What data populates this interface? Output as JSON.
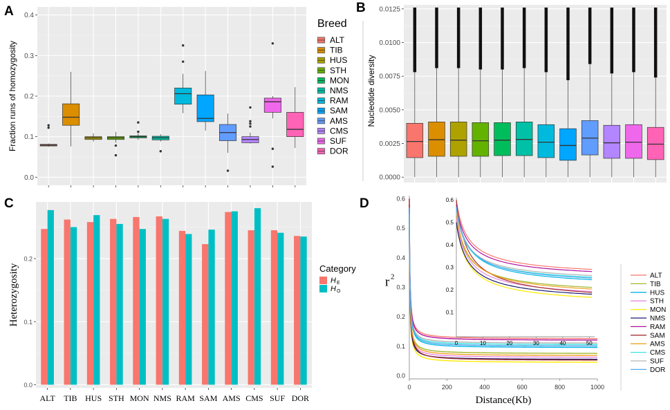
{
  "panels": {
    "A": "A",
    "B": "B",
    "C": "C",
    "D": "D"
  },
  "colors": {
    "ALT": "#f8766d",
    "TIB": "#db8e00",
    "HUS": "#aea200",
    "STH": "#64b200",
    "MON": "#00bd5c",
    "NMS": "#00c1a7",
    "RAM": "#00bade",
    "SAM": "#00a6ff",
    "AMS": "#619cff",
    "CMS": "#b385ff",
    "SUF": "#ef67eb",
    "DOR": "#ff63b6",
    "HE": "#f8766d",
    "HO": "#00bfc4"
  },
  "chart_data": [
    {
      "panel": "A",
      "type": "box",
      "ylabel": "Fraction runs of homozygosity",
      "ylim": [
        -0.02,
        0.42
      ],
      "yticks": [
        "0.0",
        "0.1",
        "0.2",
        "0.3",
        "0.4"
      ],
      "ytick_values": [
        0,
        0.1,
        0.2,
        0.3,
        0.4
      ],
      "legend_title": "Breed",
      "categories": [
        "ALT",
        "TIB",
        "HUS",
        "STH",
        "MON",
        "NMS",
        "RAM",
        "SAM",
        "AMS",
        "CMS",
        "SUF",
        "DOR"
      ],
      "boxes": [
        {
          "min": 0.075,
          "q1": 0.077,
          "median": 0.079,
          "q3": 0.081,
          "max": 0.083,
          "outliers": [
            0.122,
            0.128
          ]
        },
        {
          "min": 0.076,
          "q1": 0.128,
          "median": 0.148,
          "q3": 0.181,
          "max": 0.26,
          "outliers": []
        },
        {
          "min": 0.088,
          "q1": 0.093,
          "median": 0.097,
          "q3": 0.1,
          "max": 0.108,
          "outliers": []
        },
        {
          "min": 0.085,
          "q1": 0.093,
          "median": 0.097,
          "q3": 0.1,
          "max": 0.112,
          "outliers": [
            0.078,
            0.054
          ]
        },
        {
          "min": 0.092,
          "q1": 0.097,
          "median": 0.1,
          "q3": 0.102,
          "max": 0.108,
          "outliers": [
            0.112,
            0.135
          ]
        },
        {
          "min": 0.088,
          "q1": 0.092,
          "median": 0.097,
          "q3": 0.101,
          "max": 0.106,
          "outliers": [
            0.064
          ]
        },
        {
          "min": 0.158,
          "q1": 0.18,
          "median": 0.206,
          "q3": 0.22,
          "max": 0.255,
          "outliers": [
            0.285,
            0.325
          ]
        },
        {
          "min": 0.115,
          "q1": 0.137,
          "median": 0.145,
          "q3": 0.203,
          "max": 0.262,
          "outliers": []
        },
        {
          "min": 0.06,
          "q1": 0.09,
          "median": 0.11,
          "q3": 0.13,
          "max": 0.157,
          "outliers": [
            0.016
          ]
        },
        {
          "min": 0.083,
          "q1": 0.085,
          "median": 0.093,
          "q3": 0.1,
          "max": 0.11,
          "outliers": [
            0.125,
            0.132,
            0.138,
            0.172
          ]
        },
        {
          "min": 0.145,
          "q1": 0.16,
          "median": 0.186,
          "q3": 0.195,
          "max": 0.2,
          "outliers": [
            0.33,
            0.07,
            0.026
          ]
        },
        {
          "min": 0.072,
          "q1": 0.1,
          "median": 0.118,
          "q3": 0.16,
          "max": 0.222,
          "outliers": []
        }
      ]
    },
    {
      "panel": "B",
      "type": "box",
      "ylabel": "Nucleotide diversity",
      "ylim": [
        -0.0004,
        0.0128
      ],
      "yticks": [
        "0.0000",
        "0.0025",
        "0.0050",
        "0.0075",
        "0.0100",
        "0.0125"
      ],
      "ytick_values": [
        0,
        0.0025,
        0.005,
        0.0075,
        0.01,
        0.0125
      ],
      "categories": [
        "ALT",
        "TIB",
        "HUS",
        "STH",
        "MON",
        "NMS",
        "RAM",
        "SAM",
        "AMS",
        "CMS",
        "SUF",
        "DOR"
      ],
      "boxes": [
        {
          "min": 0,
          "q1": 0.00145,
          "median": 0.00265,
          "q3": 0.004,
          "whisker_top": 0.0078,
          "outlier_top": 0.0126
        },
        {
          "min": 0,
          "q1": 0.00155,
          "median": 0.00278,
          "q3": 0.0041,
          "whisker_top": 0.0081,
          "outlier_top": 0.0126
        },
        {
          "min": 0,
          "q1": 0.00155,
          "median": 0.00275,
          "q3": 0.0041,
          "whisker_top": 0.0081,
          "outlier_top": 0.0126
        },
        {
          "min": 0,
          "q1": 0.00155,
          "median": 0.0027,
          "q3": 0.00405,
          "whisker_top": 0.008,
          "outlier_top": 0.0126
        },
        {
          "min": 0,
          "q1": 0.0016,
          "median": 0.00275,
          "q3": 0.00405,
          "whisker_top": 0.008,
          "outlier_top": 0.0126
        },
        {
          "min": 0,
          "q1": 0.0016,
          "median": 0.0028,
          "q3": 0.0041,
          "whisker_top": 0.0081,
          "outlier_top": 0.0126
        },
        {
          "min": 0,
          "q1": 0.00145,
          "median": 0.0026,
          "q3": 0.0039,
          "whisker_top": 0.0078,
          "outlier_top": 0.0126
        },
        {
          "min": 0,
          "q1": 0.00125,
          "median": 0.00235,
          "q3": 0.0036,
          "whisker_top": 0.0072,
          "outlier_top": 0.0126
        },
        {
          "min": 0,
          "q1": 0.00165,
          "median": 0.0029,
          "q3": 0.0042,
          "whisker_top": 0.0084,
          "outlier_top": 0.0126
        },
        {
          "min": 0,
          "q1": 0.0014,
          "median": 0.00255,
          "q3": 0.00385,
          "whisker_top": 0.0077,
          "outlier_top": 0.0126
        },
        {
          "min": 0,
          "q1": 0.0014,
          "median": 0.0026,
          "q3": 0.0039,
          "whisker_top": 0.0078,
          "outlier_top": 0.0126
        },
        {
          "min": 0,
          "q1": 0.0013,
          "median": 0.00245,
          "q3": 0.0037,
          "whisker_top": 0.0074,
          "outlier_top": 0.0126
        }
      ]
    },
    {
      "panel": "C",
      "type": "bar",
      "ylabel": "Heterozygosity",
      "ylim": [
        -0.005,
        0.29
      ],
      "yticks": [
        "0.0",
        "0.1",
        "0.2"
      ],
      "ytick_values": [
        0,
        0.1,
        0.2
      ],
      "categories": [
        "ALT",
        "TIB",
        "HUS",
        "STH",
        "MON",
        "NMS",
        "RAM",
        "SAM",
        "AMS",
        "CMS",
        "SUF",
        "DOR"
      ],
      "legend_title": "Category",
      "series": [
        {
          "name": "H",
          "sub": "E",
          "values": [
            0.247,
            0.262,
            0.258,
            0.263,
            0.266,
            0.267,
            0.244,
            0.223,
            0.274,
            0.245,
            0.245,
            0.236
          ]
        },
        {
          "name": "H",
          "sub": "O",
          "values": [
            0.277,
            0.25,
            0.269,
            0.255,
            0.247,
            0.263,
            0.239,
            0.246,
            0.275,
            0.28,
            0.241,
            0.235
          ]
        }
      ]
    },
    {
      "panel": "D",
      "type": "line",
      "xlabel": "Distance(Kb)",
      "ylabel": "r",
      "ylabel_sup": "2",
      "xlim": [
        0,
        1000
      ],
      "ylim": [
        -0.01,
        0.61
      ],
      "xticks": [
        "0",
        "200",
        "400",
        "600",
        "800",
        "1000"
      ],
      "xtick_values": [
        0,
        200,
        400,
        600,
        800,
        1000
      ],
      "yticks": [
        "0.0",
        "0.1",
        "0.2",
        "0.3",
        "0.4",
        "0.5",
        "0.6"
      ],
      "ytick_values": [
        0,
        0.1,
        0.2,
        0.3,
        0.4,
        0.5,
        0.6
      ],
      "inset": {
        "xlim": [
          0,
          52
        ],
        "ylim": [
          -0.01,
          0.61
        ],
        "xticks": [
          "0",
          "10",
          "20",
          "30",
          "40",
          "50"
        ],
        "xtick_values": [
          0,
          10,
          20,
          30,
          40,
          50
        ],
        "yticks": [
          "0.1",
          "0.2",
          "0.3",
          "0.4",
          "0.5",
          "0.6"
        ],
        "ytick_values": [
          0.1,
          0.2,
          0.3,
          0.4,
          0.5,
          0.6
        ]
      },
      "series": [
        {
          "name": "ALT",
          "color": "#f8766d",
          "start": 0.6,
          "asymptote": 0.125
        },
        {
          "name": "TIB",
          "color": "#a0b92d",
          "start": 0.52,
          "asymptote": 0.075
        },
        {
          "name": "HUS",
          "color": "#00b4e6",
          "start": 0.57,
          "asymptote": 0.095
        },
        {
          "name": "STH",
          "color": "#e68ae0",
          "start": 0.52,
          "asymptote": 0.062
        },
        {
          "name": "MON",
          "color": "#ffe900",
          "start": 0.5,
          "asymptote": 0.045
        },
        {
          "name": "NMS",
          "color": "#1a1a6e",
          "start": 0.5,
          "asymptote": 0.055
        },
        {
          "name": "RAM",
          "color": "#b0109f",
          "start": 0.58,
          "asymptote": 0.12
        },
        {
          "name": "SAM",
          "color": "#a6312f",
          "start": 0.6,
          "asymptote": 0.052
        },
        {
          "name": "AMS",
          "color": "#f1a224",
          "start": 0.54,
          "asymptote": 0.068
        },
        {
          "name": "CMS",
          "color": "#3fe3e3",
          "start": 0.55,
          "asymptote": 0.105
        },
        {
          "name": "SUF",
          "color": "#b3b3b3",
          "start": 0.55,
          "asymptote": 0.11
        },
        {
          "name": "DOR",
          "color": "#4fa8ea",
          "start": 0.57,
          "asymptote": 0.1
        }
      ]
    }
  ]
}
